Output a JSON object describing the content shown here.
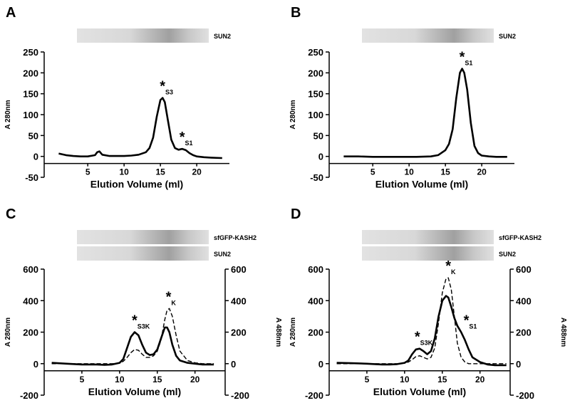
{
  "chart_data": [
    {
      "type": "line",
      "label": "A",
      "blots": [
        "SUN2"
      ],
      "ylabel": "A 280nm",
      "xlabel": "Elution Volume (ml)",
      "xlim": [
        -1,
        24.5
      ],
      "xticks": [
        5,
        10,
        15,
        20
      ],
      "ylim": [
        -50,
        250
      ],
      "yticks": [
        -50,
        0,
        50,
        100,
        150,
        200,
        250
      ],
      "x": [
        1,
        2,
        3,
        4,
        5,
        6,
        6.3,
        6.6,
        7,
        8,
        9,
        10,
        11,
        12,
        13,
        13.5,
        14,
        14.5,
        15,
        15.3,
        15.6,
        16,
        16.5,
        17,
        17.5,
        18,
        18.5,
        19,
        19.5,
        20,
        21,
        22,
        23.5
      ],
      "series": [
        {
          "color": "#000000",
          "linestyle": "solid",
          "values": [
            7,
            3,
            1,
            0,
            0,
            3,
            10,
            12,
            4,
            1,
            1,
            1,
            2,
            4,
            10,
            20,
            45,
            95,
            135,
            140,
            130,
            90,
            40,
            20,
            16,
            18,
            15,
            8,
            3,
            0,
            -2,
            -3,
            -4
          ]
        }
      ],
      "annotations": [
        {
          "mark": "*",
          "sub": "S3",
          "x": 15.3,
          "y": 140
        },
        {
          "mark": "*",
          "sub": "S1",
          "x": 18,
          "y": 18
        }
      ]
    },
    {
      "type": "line",
      "label": "B",
      "blots": [
        "SUN2"
      ],
      "ylabel": "A 280nm",
      "xlabel": "Elution Volume (ml)",
      "xlim": [
        -1,
        24.5
      ],
      "xticks": [
        5,
        10,
        15,
        20
      ],
      "ylim": [
        -50,
        250
      ],
      "yticks": [
        -50,
        0,
        50,
        100,
        150,
        200,
        250
      ],
      "x": [
        1,
        3,
        5,
        7,
        9,
        11,
        13,
        14,
        15,
        15.5,
        16,
        16.5,
        17,
        17.3,
        17.6,
        18,
        18.5,
        19,
        19.5,
        20,
        21,
        22,
        23.5
      ],
      "series": [
        {
          "color": "#000000",
          "linestyle": "solid",
          "values": [
            0,
            0,
            -1,
            -1,
            -1,
            -1,
            0,
            3,
            15,
            30,
            65,
            140,
            200,
            210,
            200,
            160,
            80,
            25,
            8,
            2,
            0,
            -1,
            -1
          ]
        }
      ],
      "annotations": [
        {
          "mark": "*",
          "sub": "S1",
          "x": 17.3,
          "y": 210
        }
      ]
    },
    {
      "type": "line",
      "label": "C",
      "blots": [
        "sfGFP-KASH2",
        "SUN2"
      ],
      "ylabel": "A 280nm",
      "y2label": "A 488nm",
      "xlabel": "Elution Volume (ml)",
      "xlim": [
        0,
        24
      ],
      "xticks": [
        5,
        10,
        15,
        20
      ],
      "ylim": [
        -200,
        600
      ],
      "yticks": [
        -200,
        0,
        200,
        400,
        600
      ],
      "y2lim": [
        -200,
        600
      ],
      "y2ticks": [
        -200,
        0,
        200,
        400,
        600
      ],
      "x": [
        1,
        3,
        5,
        7,
        8,
        9,
        10,
        10.5,
        11,
        11.5,
        12,
        12.5,
        13,
        13.5,
        14,
        14.5,
        15,
        15.5,
        16,
        16.3,
        16.6,
        17,
        17.5,
        18,
        19,
        20,
        21,
        22.5
      ],
      "series": [
        {
          "color": "#000000",
          "linestyle": "solid",
          "values": [
            5,
            0,
            -5,
            -5,
            -8,
            -5,
            5,
            30,
            100,
            170,
            200,
            180,
            120,
            70,
            55,
            60,
            90,
            160,
            230,
            230,
            200,
            120,
            50,
            20,
            5,
            0,
            -5,
            -5
          ]
        },
        {
          "color": "#000000",
          "linestyle": "dashed",
          "axis": "y2",
          "values": [
            0,
            0,
            0,
            0,
            0,
            0,
            3,
            15,
            40,
            70,
            90,
            85,
            60,
            40,
            40,
            50,
            80,
            150,
            280,
            340,
            350,
            300,
            180,
            80,
            20,
            5,
            0,
            0
          ]
        }
      ],
      "annotations": [
        {
          "mark": "*",
          "sub": "S3K",
          "x": 12,
          "y": 200
        },
        {
          "mark": "*",
          "sub": "K",
          "x": 16.5,
          "y": 350
        }
      ]
    },
    {
      "type": "line",
      "label": "D",
      "blots": [
        "sfGFP-KASH2",
        "SUN2"
      ],
      "ylabel": "A 280nm",
      "y2label": "A 488nm",
      "xlabel": "Elution Volume (ml)",
      "xlim": [
        0,
        24
      ],
      "xticks": [
        5,
        10,
        15,
        20
      ],
      "ylim": [
        -200,
        600
      ],
      "yticks": [
        -200,
        0,
        200,
        400,
        600
      ],
      "y2lim": [
        -200,
        600
      ],
      "y2ticks": [
        -200,
        0,
        200,
        400,
        600
      ],
      "x": [
        1,
        3,
        5,
        7,
        8,
        9,
        10,
        10.5,
        11,
        11.5,
        12,
        12.5,
        13,
        13.5,
        14,
        14.5,
        15,
        15.5,
        15.8,
        16.2,
        16.6,
        17,
        17.5,
        18,
        18.5,
        19,
        20,
        21,
        22,
        23.5
      ],
      "series": [
        {
          "color": "#000000",
          "linestyle": "solid",
          "values": [
            5,
            3,
            0,
            -5,
            -5,
            -3,
            5,
            20,
            60,
            90,
            95,
            80,
            60,
            80,
            160,
            300,
            400,
            430,
            420,
            360,
            290,
            240,
            200,
            150,
            90,
            40,
            10,
            -5,
            -10,
            -10
          ]
        },
        {
          "color": "#000000",
          "linestyle": "dashed",
          "axis": "y2",
          "values": [
            0,
            0,
            0,
            0,
            0,
            0,
            3,
            10,
            25,
            45,
            50,
            40,
            30,
            40,
            100,
            260,
            450,
            540,
            545,
            470,
            300,
            130,
            40,
            10,
            0,
            0,
            0,
            0,
            0,
            0
          ]
        }
      ],
      "annotations": [
        {
          "mark": "*",
          "sub": "S3K",
          "x": 11.7,
          "y": 95
        },
        {
          "mark": "*",
          "sub": "K",
          "x": 15.8,
          "y": 545
        },
        {
          "mark": "*",
          "sub": "S1",
          "x": 18.2,
          "y": 200
        }
      ]
    }
  ]
}
